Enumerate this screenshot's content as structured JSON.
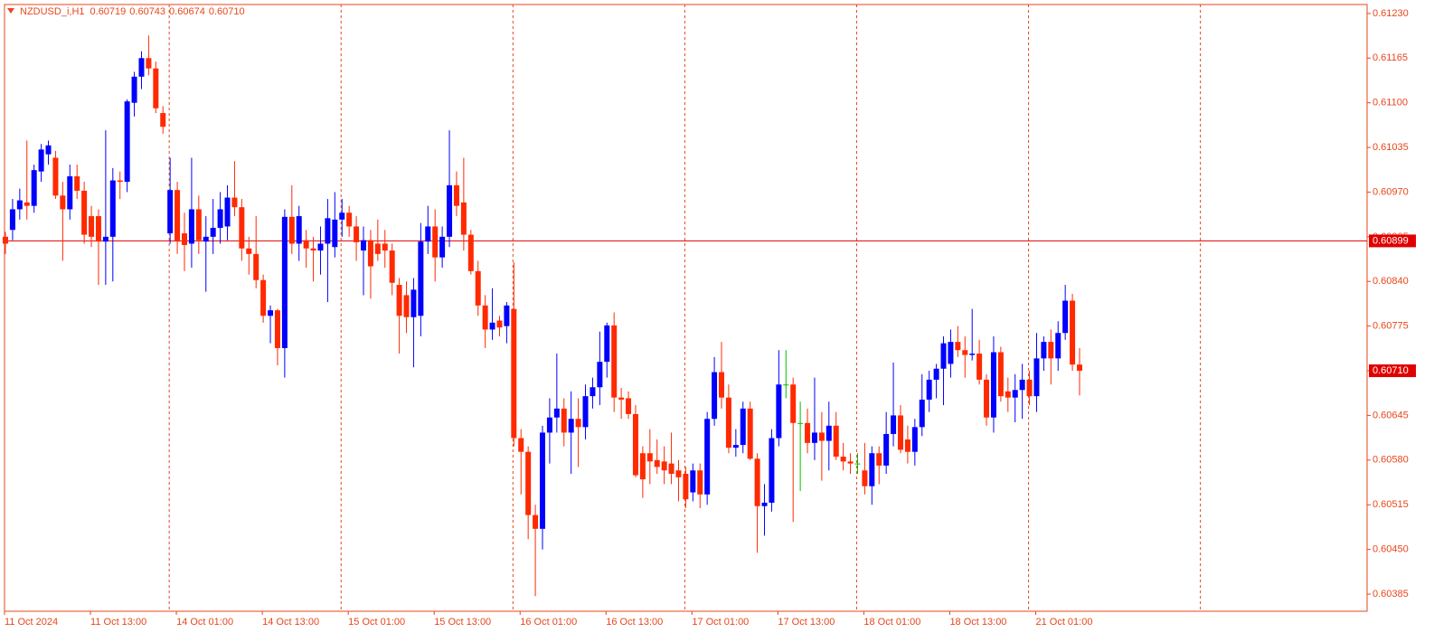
{
  "chart_data": {
    "type": "candlestick",
    "title": "NZDUSD_i,H1",
    "header_ohlc": [
      {
        "value": 0.60719,
        "label": "0.60719"
      },
      {
        "value": 0.60743,
        "label": "0.60743"
      },
      {
        "value": 0.60674,
        "label": "0.60674"
      },
      {
        "value": 0.6071,
        "label": "0.60710"
      }
    ],
    "categories": [
      "11 Oct 2024",
      null,
      null,
      null,
      null,
      null,
      null,
      null,
      null,
      null,
      null,
      null,
      "11 Oct 13:00",
      null,
      null,
      null,
      null,
      null,
      null,
      null,
      null,
      null,
      null,
      null,
      "14 Oct 01:00",
      null,
      null,
      null,
      null,
      null,
      null,
      null,
      null,
      null,
      null,
      null,
      "14 Oct 13:00",
      null,
      null,
      null,
      null,
      null,
      null,
      null,
      null,
      null,
      null,
      null,
      "15 Oct 01:00",
      null,
      null,
      null,
      null,
      null,
      null,
      null,
      null,
      null,
      null,
      null,
      "15 Oct 13:00",
      null,
      null,
      null,
      null,
      null,
      null,
      null,
      null,
      null,
      null,
      null,
      "16 Oct 01:00",
      null,
      null,
      null,
      null,
      null,
      null,
      null,
      null,
      null,
      null,
      null,
      "16 Oct 13:00",
      null,
      null,
      null,
      null,
      null,
      null,
      null,
      null,
      null,
      null,
      null,
      "17 Oct 01:00",
      null,
      null,
      null,
      null,
      null,
      null,
      null,
      null,
      null,
      null,
      null,
      "17 Oct 13:00",
      null,
      null,
      null,
      null,
      null,
      null,
      null,
      null,
      null,
      null,
      null,
      "18 Oct 01:00",
      null,
      null,
      null,
      null,
      null,
      null,
      null,
      null,
      null,
      null,
      null,
      "18 Oct 13:00",
      null,
      null,
      null,
      null,
      null,
      null,
      null,
      null,
      null,
      null,
      null,
      "21 Oct 01:00",
      null,
      null,
      null,
      null,
      null,
      null
    ],
    "ohlc": [
      [
        0.60905,
        0.60912,
        0.6088,
        0.60895
      ],
      [
        0.60915,
        0.6096,
        0.609,
        0.60945
      ],
      [
        0.60945,
        0.60975,
        0.6093,
        0.60958
      ],
      [
        0.60955,
        0.61045,
        0.6093,
        0.6095
      ],
      [
        0.6095,
        0.6101,
        0.6094,
        0.61002
      ],
      [
        0.61,
        0.6104,
        0.60985,
        0.61032
      ],
      [
        0.61025,
        0.61045,
        0.6101,
        0.61038
      ],
      [
        0.6102,
        0.6103,
        0.6096,
        0.60965
      ],
      [
        0.60965,
        0.60985,
        0.6087,
        0.60945
      ],
      [
        0.60945,
        0.6101,
        0.6093,
        0.60993
      ],
      [
        0.60993,
        0.6101,
        0.6096,
        0.60972
      ],
      [
        0.60972,
        0.60985,
        0.60895,
        0.60908
      ],
      [
        0.60935,
        0.6095,
        0.6089,
        0.60905
      ],
      [
        0.60935,
        0.60945,
        0.60835,
        0.60898
      ],
      [
        0.60898,
        0.6106,
        0.60835,
        0.60905
      ],
      [
        0.60905,
        0.61005,
        0.6084,
        0.60987
      ],
      [
        0.60987,
        0.61,
        0.6096,
        0.60985
      ],
      [
        0.60985,
        0.61105,
        0.6097,
        0.61102
      ],
      [
        0.611,
        0.61145,
        0.6108,
        0.61138
      ],
      [
        0.61138,
        0.61175,
        0.6112,
        0.61165
      ],
      [
        0.61165,
        0.61198,
        0.6114,
        0.6115
      ],
      [
        0.6115,
        0.6116,
        0.61085,
        0.61092
      ],
      [
        0.61085,
        0.61095,
        0.61055,
        0.61065
      ],
      [
        0.6091,
        0.6102,
        0.60895,
        0.60973
      ],
      [
        0.60973,
        0.60985,
        0.6088,
        0.60898
      ],
      [
        0.6091,
        0.6094,
        0.60855,
        0.60893
      ],
      [
        0.60895,
        0.6102,
        0.6086,
        0.60945
      ],
      [
        0.60945,
        0.60965,
        0.6088,
        0.609
      ],
      [
        0.60898,
        0.60935,
        0.60825,
        0.60905
      ],
      [
        0.60905,
        0.6096,
        0.6088,
        0.60918
      ],
      [
        0.60918,
        0.6097,
        0.60895,
        0.60945
      ],
      [
        0.6092,
        0.6098,
        0.609,
        0.60962
      ],
      [
        0.60962,
        0.61015,
        0.60935,
        0.60948
      ],
      [
        0.60948,
        0.6096,
        0.6087,
        0.60888
      ],
      [
        0.60888,
        0.60905,
        0.6085,
        0.6088
      ],
      [
        0.6088,
        0.60935,
        0.6083,
        0.60842
      ],
      [
        0.60842,
        0.6085,
        0.6078,
        0.6079
      ],
      [
        0.6079,
        0.60805,
        0.6075,
        0.60798
      ],
      [
        0.60798,
        0.608,
        0.60718,
        0.60743
      ],
      [
        0.60743,
        0.60945,
        0.607,
        0.60934
      ],
      [
        0.60934,
        0.6098,
        0.6088,
        0.60895
      ],
      [
        0.60895,
        0.6095,
        0.6087,
        0.60935
      ],
      [
        0.609,
        0.60915,
        0.6086,
        0.60888
      ],
      [
        0.60888,
        0.60905,
        0.6084,
        0.60885
      ],
      [
        0.60885,
        0.6092,
        0.6085,
        0.60895
      ],
      [
        0.60895,
        0.6096,
        0.6081,
        0.60932
      ],
      [
        0.6089,
        0.6097,
        0.60875,
        0.6093
      ],
      [
        0.6093,
        0.6096,
        0.60905,
        0.6094
      ],
      [
        0.6094,
        0.6095,
        0.60905,
        0.6092
      ],
      [
        0.6092,
        0.60935,
        0.6087,
        0.60897
      ],
      [
        0.60885,
        0.6092,
        0.6082,
        0.609
      ],
      [
        0.609,
        0.60915,
        0.60815,
        0.60862
      ],
      [
        0.60895,
        0.6093,
        0.6087,
        0.6088
      ],
      [
        0.60895,
        0.60915,
        0.6086,
        0.60885
      ],
      [
        0.60885,
        0.60895,
        0.6082,
        0.60838
      ],
      [
        0.60835,
        0.60845,
        0.60735,
        0.6079
      ],
      [
        0.6082,
        0.6084,
        0.60765,
        0.60788
      ],
      [
        0.60788,
        0.60845,
        0.60715,
        0.60828
      ],
      [
        0.6079,
        0.60925,
        0.6076,
        0.60898
      ],
      [
        0.60898,
        0.6095,
        0.6088,
        0.6092
      ],
      [
        0.6092,
        0.60945,
        0.6084,
        0.60875
      ],
      [
        0.60875,
        0.6092,
        0.6086,
        0.60905
      ],
      [
        0.60905,
        0.6106,
        0.6089,
        0.6098
      ],
      [
        0.6098,
        0.61,
        0.60935,
        0.6095
      ],
      [
        0.60955,
        0.6102,
        0.60885,
        0.60908
      ],
      [
        0.60908,
        0.60915,
        0.6085,
        0.60855
      ],
      [
        0.60855,
        0.6087,
        0.6079,
        0.60805
      ],
      [
        0.60805,
        0.6082,
        0.60743,
        0.6077
      ],
      [
        0.6077,
        0.6083,
        0.60755,
        0.6078
      ],
      [
        0.60783,
        0.6079,
        0.6076,
        0.60773
      ],
      [
        0.60775,
        0.6081,
        0.6075,
        0.60805
      ],
      [
        0.608,
        0.60868,
        0.606,
        0.60612
      ],
      [
        0.60612,
        0.60625,
        0.6053,
        0.60592
      ],
      [
        0.60592,
        0.606,
        0.60465,
        0.605
      ],
      [
        0.605,
        0.60515,
        0.60382,
        0.6048
      ],
      [
        0.6048,
        0.6063,
        0.6045,
        0.6062
      ],
      [
        0.6062,
        0.6067,
        0.60575,
        0.60642
      ],
      [
        0.60642,
        0.60735,
        0.6062,
        0.60655
      ],
      [
        0.60655,
        0.6067,
        0.606,
        0.6062
      ],
      [
        0.6062,
        0.6068,
        0.6056,
        0.6064
      ],
      [
        0.6064,
        0.6067,
        0.6057,
        0.60628
      ],
      [
        0.60628,
        0.6069,
        0.6061,
        0.60673
      ],
      [
        0.60673,
        0.607,
        0.60655,
        0.60686
      ],
      [
        0.60686,
        0.60767,
        0.6066,
        0.60723
      ],
      [
        0.60723,
        0.6078,
        0.607,
        0.60776
      ],
      [
        0.60776,
        0.60795,
        0.6065,
        0.60671
      ],
      [
        0.60671,
        0.60685,
        0.6064,
        0.60668
      ],
      [
        0.6067,
        0.6068,
        0.6064,
        0.60647
      ],
      [
        0.60647,
        0.6066,
        0.60555,
        0.60558
      ],
      [
        0.6059,
        0.606,
        0.60525,
        0.60552
      ],
      [
        0.6059,
        0.60625,
        0.60545,
        0.60578
      ],
      [
        0.6058,
        0.6061,
        0.6056,
        0.6057
      ],
      [
        0.60578,
        0.606,
        0.60545,
        0.60565
      ],
      [
        0.60575,
        0.6062,
        0.60545,
        0.6056
      ],
      [
        0.60565,
        0.6058,
        0.6052,
        0.60555
      ],
      [
        0.6056,
        0.6057,
        0.6051,
        0.60523
      ],
      [
        0.60533,
        0.60575,
        0.6052,
        0.60565
      ],
      [
        0.60565,
        0.60575,
        0.6051,
        0.6053
      ],
      [
        0.6053,
        0.6065,
        0.60515,
        0.6064
      ],
      [
        0.6064,
        0.6073,
        0.6063,
        0.60708
      ],
      [
        0.60708,
        0.60752,
        0.60655,
        0.60671
      ],
      [
        0.60671,
        0.6069,
        0.6059,
        0.60598
      ],
      [
        0.60598,
        0.60625,
        0.60585,
        0.60602
      ],
      [
        0.60602,
        0.60665,
        0.6059,
        0.60655
      ],
      [
        0.60655,
        0.60665,
        0.6058,
        0.60582
      ],
      [
        0.60582,
        0.6059,
        0.60445,
        0.60513
      ],
      [
        0.60513,
        0.60545,
        0.6047,
        0.60518
      ],
      [
        0.60518,
        0.60625,
        0.60505,
        0.60612
      ],
      [
        0.60612,
        0.6074,
        0.606,
        0.6069
      ],
      [
        0.6069,
        0.6074,
        0.6067,
        0.6069
      ],
      [
        0.6069,
        0.607,
        0.6049,
        0.60634
      ],
      [
        0.60634,
        0.60665,
        0.60535,
        0.60634
      ],
      [
        0.60634,
        0.60655,
        0.6059,
        0.60605
      ],
      [
        0.60605,
        0.607,
        0.6058,
        0.6062
      ],
      [
        0.6062,
        0.6065,
        0.6055,
        0.60608
      ],
      [
        0.60608,
        0.60665,
        0.60565,
        0.6063
      ],
      [
        0.6063,
        0.6065,
        0.6058,
        0.60585
      ],
      [
        0.60585,
        0.60605,
        0.60565,
        0.60578
      ],
      [
        0.60578,
        0.6059,
        0.6056,
        0.60575
      ],
      [
        0.60575,
        0.6059,
        0.6056,
        0.60575
      ],
      [
        0.60565,
        0.60605,
        0.6053,
        0.60542
      ],
      [
        0.60542,
        0.606,
        0.60515,
        0.6059
      ],
      [
        0.6059,
        0.606,
        0.60545,
        0.60572
      ],
      [
        0.60572,
        0.6065,
        0.6056,
        0.60618
      ],
      [
        0.60618,
        0.60722,
        0.606,
        0.60645
      ],
      [
        0.60645,
        0.6066,
        0.6059,
        0.60595
      ],
      [
        0.6061,
        0.6063,
        0.60575,
        0.60592
      ],
      [
        0.60592,
        0.6064,
        0.60572,
        0.60628
      ],
      [
        0.60628,
        0.60705,
        0.60615,
        0.60668
      ],
      [
        0.60668,
        0.6071,
        0.6065,
        0.60697
      ],
      [
        0.60697,
        0.6072,
        0.6067,
        0.60713
      ],
      [
        0.60713,
        0.6076,
        0.6066,
        0.6075
      ],
      [
        0.6072,
        0.6077,
        0.607,
        0.60752
      ],
      [
        0.60752,
        0.60775,
        0.6073,
        0.6074
      ],
      [
        0.6074,
        0.6076,
        0.607,
        0.60733
      ],
      [
        0.60733,
        0.608,
        0.60725,
        0.60735
      ],
      [
        0.60735,
        0.60755,
        0.6069,
        0.60697
      ],
      [
        0.60697,
        0.60705,
        0.6063,
        0.60642
      ],
      [
        0.60642,
        0.6076,
        0.6062,
        0.60737
      ],
      [
        0.60737,
        0.60745,
        0.60665,
        0.60673
      ],
      [
        0.6068,
        0.607,
        0.6065,
        0.60671
      ],
      [
        0.60671,
        0.60705,
        0.60635,
        0.60682
      ],
      [
        0.60682,
        0.6072,
        0.6064,
        0.60697
      ],
      [
        0.60697,
        0.6071,
        0.6066,
        0.60673
      ],
      [
        0.60673,
        0.60765,
        0.6065,
        0.60728
      ],
      [
        0.60728,
        0.6076,
        0.6071,
        0.60752
      ],
      [
        0.60752,
        0.6077,
        0.6069,
        0.60728
      ],
      [
        0.60728,
        0.60782,
        0.6071,
        0.60765
      ],
      [
        0.60765,
        0.60835,
        0.60755,
        0.60812
      ],
      [
        0.60812,
        0.60822,
        0.6071,
        0.60719
      ],
      [
        0.60719,
        0.60743,
        0.60674,
        0.6071
      ]
    ],
    "ylim": [
      0.6036,
      0.61243
    ],
    "yticks": [
      {
        "value": 0.6123,
        "label": "0.61230"
      },
      {
        "value": 0.61165,
        "label": "0.61165"
      },
      {
        "value": 0.611,
        "label": "0.61100"
      },
      {
        "value": 0.61035,
        "label": "0.61035"
      },
      {
        "value": 0.6097,
        "label": "0.60970"
      },
      {
        "value": 0.60905,
        "label": "0.60905"
      },
      {
        "value": 0.6084,
        "label": "0.60840"
      },
      {
        "value": 0.60775,
        "label": "0.60775"
      },
      {
        "value": 0.6071,
        "label": "0.60710"
      },
      {
        "value": 0.60645,
        "label": "0.60645"
      },
      {
        "value": 0.6058,
        "label": "0.60580"
      },
      {
        "value": 0.60515,
        "label": "0.60515"
      },
      {
        "value": 0.6045,
        "label": "0.60450"
      },
      {
        "value": 0.60385,
        "label": "0.60385"
      }
    ],
    "horizontal_line": {
      "value": 0.60899,
      "label": "0.60899"
    },
    "last_price": {
      "value": 0.6071,
      "label": "0.60710"
    },
    "grid": false,
    "up_color": "#0000ff",
    "down_color": "#ff2a00",
    "doji_color": "#00c000",
    "axis_color": "#e8461b"
  }
}
